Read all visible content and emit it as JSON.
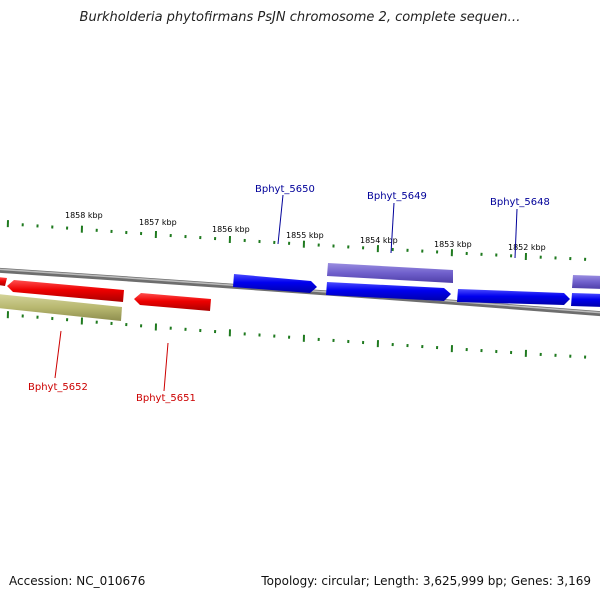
{
  "title": "Burkholderia phytofirmans PsJN chromosome 2, complete sequen…",
  "footer": {
    "accession": "Accession: NC_010676",
    "topology": "Topology: circular; Length: 3,625,999 bp; Genes: 3,169"
  },
  "colors": {
    "forward_gene": "#0000ee",
    "reverse_gene": "#ee0000",
    "forward_label": "#000099",
    "reverse_label": "#cc0000",
    "other_forward": "#7060cc",
    "other_reverse": "#b8b870",
    "tick": "#1f7a1f",
    "backbone": "#808080"
  },
  "scale_labels": [
    "1858 kbp",
    "1857 kbp",
    "1856 kbp",
    "1855 kbp",
    "1854 kbp",
    "1853 kbp",
    "1852 kbp"
  ],
  "gene_labels": {
    "Bphyt_5650": "Bphyt_5650",
    "Bphyt_5649": "Bphyt_5649",
    "Bphyt_5648": "Bphyt_5648",
    "Bphyt_5652": "Bphyt_5652",
    "Bphyt_5651": "Bphyt_5651"
  }
}
